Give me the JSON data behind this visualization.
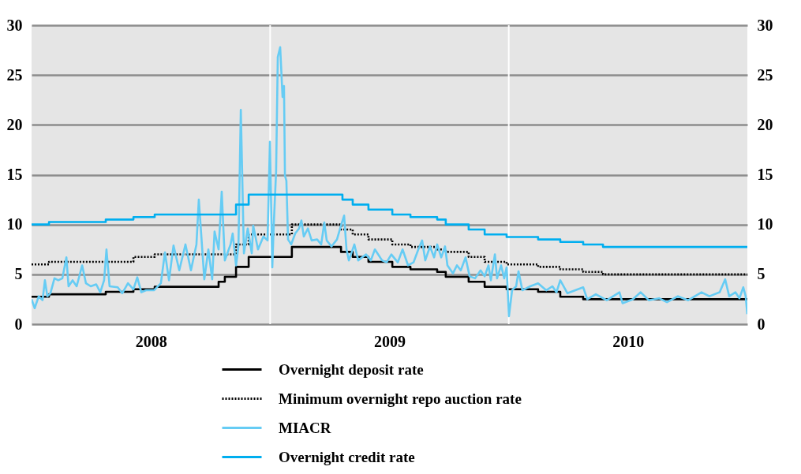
{
  "chart_data": {
    "type": "line",
    "xlim": [
      2008,
      2011
    ],
    "xticks": [
      {
        "value": 2008.5,
        "label": "2008"
      },
      {
        "value": 2009.5,
        "label": "2009"
      },
      {
        "value": 2010.5,
        "label": "2010"
      }
    ],
    "ylim": [
      0,
      30
    ],
    "yticks": [
      0,
      5,
      10,
      15,
      20,
      25,
      30
    ],
    "y2lim": [
      0,
      30
    ],
    "y2ticks": [
      0,
      5,
      10,
      15,
      20,
      25,
      30
    ],
    "grid": "y",
    "legend": "bottom",
    "ref_lines": [
      {
        "axis": "x",
        "value": 2009,
        "color": "#ffffff"
      },
      {
        "axis": "x",
        "value": 2010,
        "color": "#ffffff"
      }
    ],
    "series": [
      {
        "name": "Overnight deposit rate",
        "type": "step",
        "color": "#000000",
        "line_style": "solid",
        "x": [
          2008.0,
          2008.073,
          2008.311,
          2008.427,
          2008.516,
          2008.784,
          2008.81,
          2008.857,
          2008.91,
          2009.091,
          2009.297,
          2009.346,
          2009.412,
          2009.512,
          2009.588,
          2009.7,
          2009.736,
          2009.832,
          2009.899,
          2009.991,
          2010.123,
          2010.216,
          2010.312,
          2011.0
        ],
        "values": [
          2.75,
          3,
          3.25,
          3.5,
          3.75,
          4.25,
          4.75,
          5.75,
          6.75,
          7.75,
          7.25,
          6.75,
          6.25,
          5.75,
          5.5,
          5.25,
          4.75,
          4.25,
          3.75,
          3.5,
          3.25,
          2.75,
          2.5,
          2.5
        ]
      },
      {
        "name": "Minimum overnight repo auction rate",
        "type": "step",
        "color": "#000000",
        "line_style": "dotted",
        "x": [
          2008.0,
          2008.073,
          2008.427,
          2008.516,
          2008.857,
          2008.91,
          2009.091,
          2009.297,
          2009.346,
          2009.412,
          2009.512,
          2009.588,
          2009.7,
          2009.736,
          2009.832,
          2009.899,
          2009.991,
          2010.123,
          2010.216,
          2010.312,
          2010.395,
          2011.0
        ],
        "values": [
          6,
          6.25,
          6.75,
          7,
          8,
          9,
          10,
          9.5,
          9,
          8.5,
          8,
          7.75,
          7.5,
          7.25,
          6.75,
          6.25,
          6,
          5.75,
          5.5,
          5.25,
          5,
          5
        ]
      },
      {
        "name": "MIACR",
        "type": "line",
        "color": "#66ccf4",
        "line_style": "solid",
        "x": [
          2008.0,
          2008.013,
          2008.03,
          2008.046,
          2008.056,
          2008.066,
          2008.079,
          2008.096,
          2008.112,
          2008.129,
          2008.146,
          2008.155,
          2008.172,
          2008.189,
          2008.212,
          2008.228,
          2008.248,
          2008.271,
          2008.288,
          2008.304,
          2008.314,
          2008.327,
          2008.361,
          2008.38,
          2008.404,
          2008.427,
          2008.443,
          2008.46,
          2008.48,
          2008.513,
          2008.542,
          2008.559,
          2008.576,
          2008.595,
          2008.619,
          2008.645,
          2008.668,
          2008.691,
          2008.701,
          2008.724,
          2008.741,
          2008.757,
          2008.767,
          2008.784,
          2008.797,
          2008.81,
          2008.834,
          2008.843,
          2008.857,
          2008.867,
          2008.877,
          2008.89,
          2008.906,
          2008.923,
          2008.929,
          2008.949,
          2008.972,
          2008.989,
          2008.999,
          2009.009,
          2009.015,
          2009.025,
          2009.032,
          2009.042,
          2009.052,
          2009.058,
          2009.062,
          2009.068,
          2009.075,
          2009.088,
          2009.105,
          2009.121,
          2009.131,
          2009.141,
          2009.158,
          2009.174,
          2009.197,
          2009.214,
          2009.227,
          2009.237,
          2009.257,
          2009.28,
          2009.297,
          2009.31,
          2009.32,
          2009.33,
          2009.353,
          2009.369,
          2009.402,
          2009.422,
          2009.439,
          2009.469,
          2009.488,
          2009.508,
          2009.535,
          2009.555,
          2009.578,
          2009.601,
          2009.621,
          2009.637,
          2009.65,
          2009.67,
          2009.687,
          2009.7,
          2009.717,
          2009.733,
          2009.743,
          2009.766,
          2009.783,
          2009.799,
          2009.819,
          2009.836,
          2009.859,
          2009.882,
          2009.899,
          2009.915,
          2009.925,
          2009.942,
          2009.951,
          2009.968,
          2009.981,
          2009.991,
          2010.001,
          2010.014,
          2010.031,
          2010.041,
          2010.057,
          2010.09,
          2010.123,
          2010.157,
          2010.183,
          2010.2,
          2010.216,
          2010.246,
          2010.279,
          2010.312,
          2010.329,
          2010.365,
          2010.411,
          2010.464,
          2010.477,
          2010.52,
          2010.553,
          2010.587,
          2010.63,
          2010.663,
          2010.709,
          2010.752,
          2010.808,
          2010.841,
          2010.884,
          2010.907,
          2010.924,
          2010.95,
          2010.967,
          2010.983,
          2010.993,
          2011.0
        ],
        "values": [
          2.5,
          1.6,
          2.8,
          2.4,
          4.4,
          2.8,
          3.1,
          4.6,
          4.4,
          4.6,
          6.7,
          3.8,
          4.4,
          3.8,
          5.9,
          4.1,
          3.8,
          4.0,
          3.2,
          4.4,
          7.5,
          3.8,
          3.7,
          3.1,
          4.1,
          3.5,
          4.7,
          3.2,
          3.4,
          3.4,
          4.1,
          7.2,
          4.4,
          7.9,
          5.4,
          8.0,
          5.4,
          8.0,
          12.5,
          4.5,
          7.5,
          4.5,
          9.3,
          7.5,
          13.3,
          6.4,
          8.0,
          9.1,
          5.9,
          7.8,
          21.5,
          7.1,
          9.6,
          7.1,
          9.9,
          7.5,
          8.8,
          8.4,
          18.3,
          5.7,
          9.9,
          15.4,
          26.8,
          27.8,
          22.8,
          23.9,
          14.9,
          14.4,
          8.5,
          8.0,
          9.1,
          9.6,
          10.4,
          8.8,
          9.6,
          8.4,
          8.5,
          8.0,
          10.2,
          8.4,
          7.8,
          8.5,
          9.9,
          10.9,
          7.5,
          6.4,
          8.0,
          6.4,
          7.0,
          6.4,
          7.5,
          6.4,
          6.2,
          7.0,
          6.2,
          7.5,
          5.9,
          6.2,
          7.5,
          8.4,
          6.4,
          7.8,
          6.7,
          8.0,
          6.7,
          7.8,
          5.9,
          5.1,
          5.9,
          5.4,
          6.7,
          4.8,
          4.6,
          5.4,
          4.8,
          5.9,
          4.4,
          7.0,
          4.6,
          5.9,
          4.6,
          5.7,
          0.8,
          3.4,
          3.8,
          5.3,
          3.4,
          3.8,
          4.1,
          3.4,
          3.8,
          3.2,
          4.4,
          3.1,
          3.4,
          3.7,
          2.5,
          3.0,
          2.4,
          3.2,
          2.1,
          2.5,
          3.2,
          2.4,
          2.6,
          2.2,
          2.8,
          2.4,
          3.2,
          2.8,
          3.2,
          4.5,
          2.8,
          3.2,
          2.6,
          3.7,
          2.8,
          1.0
        ]
      },
      {
        "name": "Overnight credit rate",
        "type": "step",
        "color": "#00aeef",
        "line_style": "solid",
        "x": [
          2008.0,
          2008.073,
          2008.311,
          2008.427,
          2008.516,
          2008.857,
          2008.91,
          2009.303,
          2009.346,
          2009.412,
          2009.512,
          2009.588,
          2009.7,
          2009.736,
          2009.832,
          2009.899,
          2009.991,
          2010.123,
          2010.216,
          2010.312,
          2010.395,
          2011.0
        ],
        "values": [
          10,
          10.25,
          10.5,
          10.75,
          11,
          12,
          13,
          12.5,
          12,
          11.5,
          11,
          10.75,
          10.5,
          10,
          9.5,
          9,
          8.75,
          8.5,
          8.25,
          8,
          7.75,
          7.75
        ]
      }
    ]
  }
}
